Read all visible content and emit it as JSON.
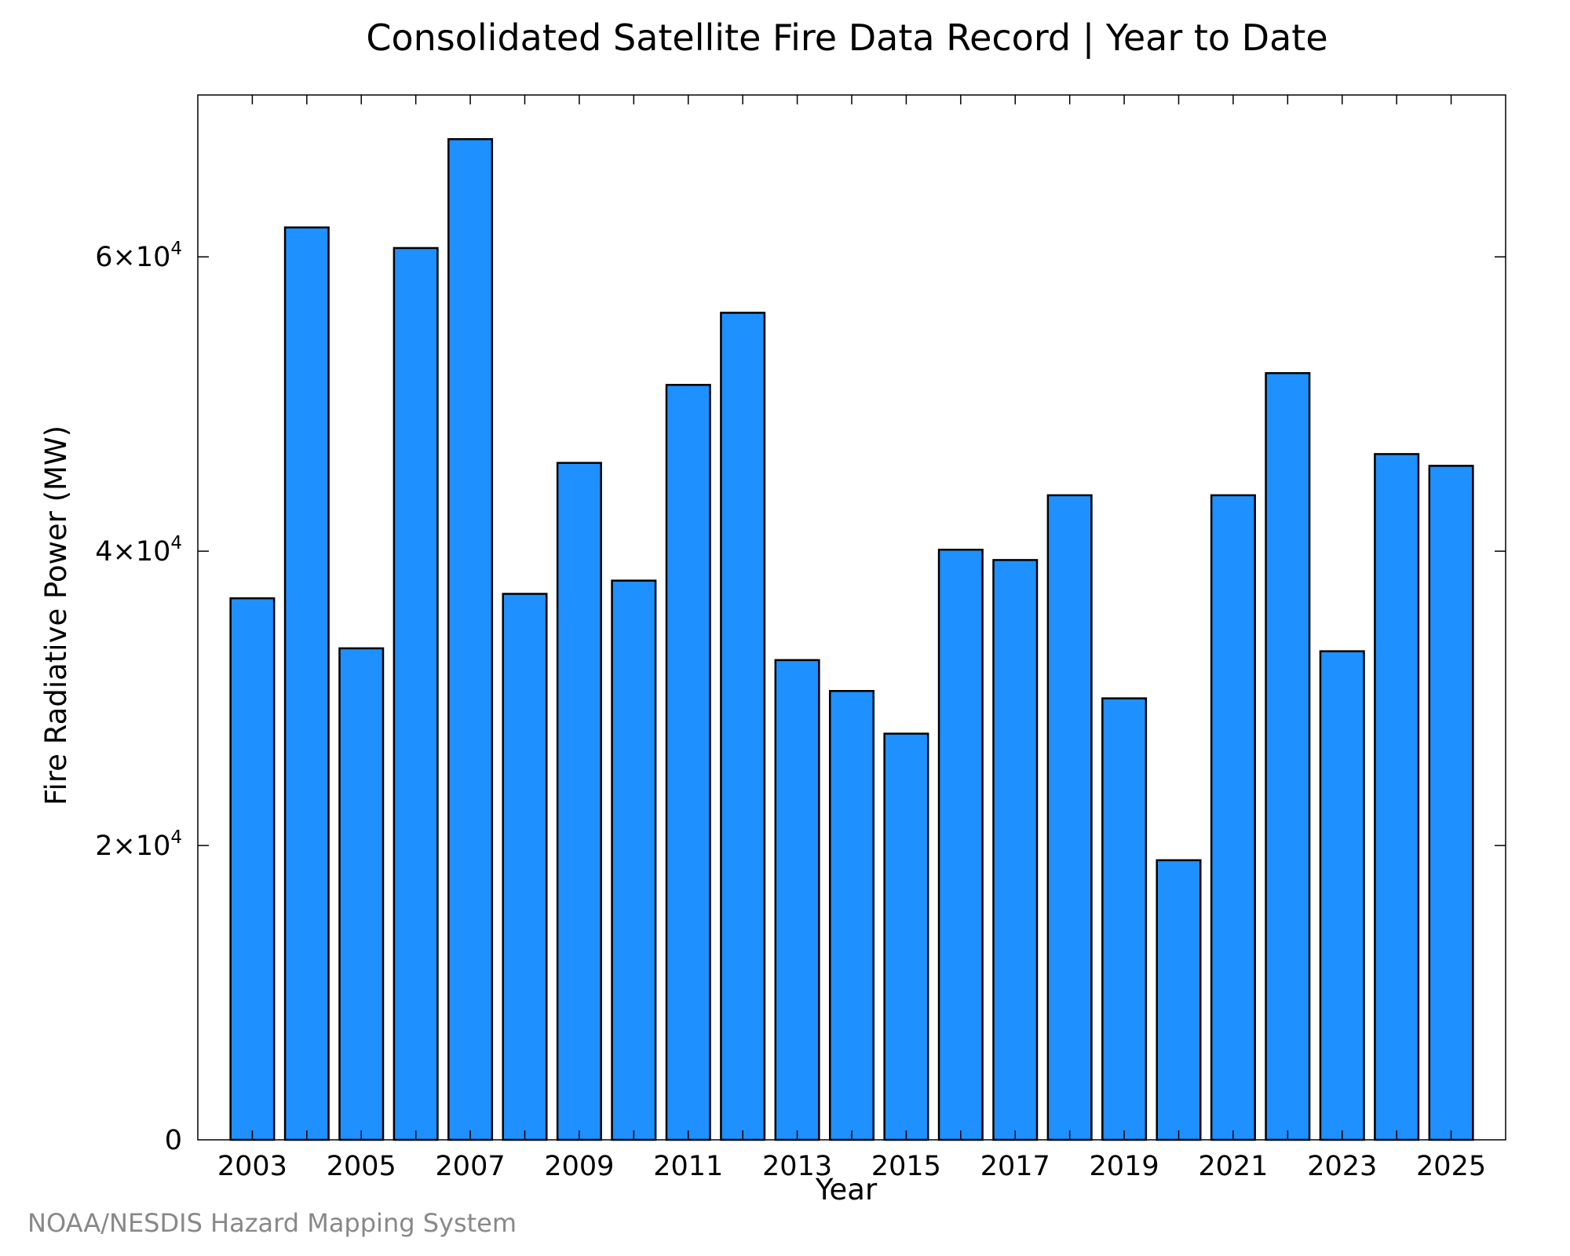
{
  "chart_data": {
    "type": "bar",
    "title": "Consolidated Satellite Fire Data Record | Year to Date",
    "xlabel": "Year",
    "ylabel": "Fire Radiative Power (MW)",
    "categories": [
      "2003",
      "2004",
      "2005",
      "2006",
      "2007",
      "2008",
      "2009",
      "2010",
      "2011",
      "2012",
      "2013",
      "2014",
      "2015",
      "2016",
      "2017",
      "2018",
      "2019",
      "2020",
      "2021",
      "2022",
      "2023",
      "2024",
      "2025"
    ],
    "x_tick_labels": [
      "2003",
      "2005",
      "2007",
      "2009",
      "2011",
      "2013",
      "2015",
      "2017",
      "2019",
      "2021",
      "2023",
      "2025"
    ],
    "values": [
      36800,
      62000,
      33400,
      60600,
      68000,
      37100,
      46000,
      38000,
      51300,
      56200,
      32600,
      30500,
      27600,
      40100,
      39400,
      43800,
      30000,
      19000,
      43800,
      52100,
      33200,
      46600,
      45800
    ],
    "ylim": [
      0,
      71000
    ],
    "y_ticks": [
      {
        "value": 0,
        "mantissa": "0",
        "exponent": ""
      },
      {
        "value": 20000,
        "mantissa": "2×10",
        "exponent": "4"
      },
      {
        "value": 40000,
        "mantissa": "4×10",
        "exponent": "4"
      },
      {
        "value": 60000,
        "mantissa": "6×10",
        "exponent": "4"
      }
    ],
    "bar_color": "#1e90ff",
    "bar_edge_color": "#000000",
    "grid": false
  },
  "credit": "NOAA/NESDIS Hazard Mapping System"
}
